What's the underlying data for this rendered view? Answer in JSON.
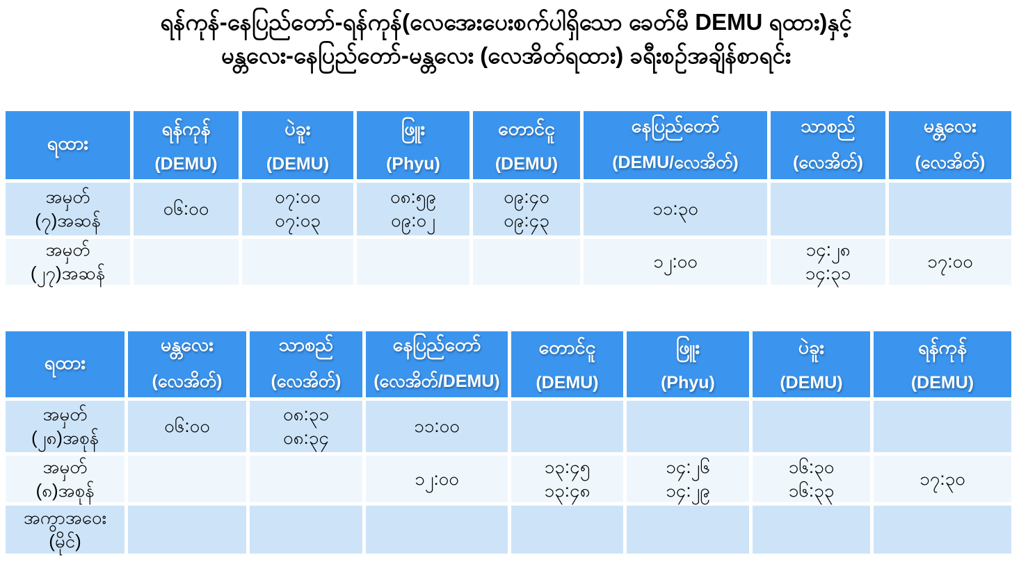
{
  "title": {
    "line1": "ရန်ကုန်-နေပြည်တော်-ရန်ကုန်(လေအေးပေးစက်ပါရှိသော ခေတ်မီ DEMU ရထား)နှင့်",
    "line2": "မန္တလေး-နေပြည်တော်-မန္တလေး (လေအိတ်ရထား) ခရီးစဉ်အချိန်စာရင်း"
  },
  "colors": {
    "header_bg": "#3B95EF",
    "row_light_blue": "#CDE4F8",
    "row_pale_blue": "#EFF7FD",
    "header_text": "#FFFFFF",
    "body_text": "#050505"
  },
  "table1": {
    "columns": [
      {
        "name": "ရထား",
        "sub": ""
      },
      {
        "name": "ရန်ကုန်",
        "sub": "(DEMU)"
      },
      {
        "name": "ပဲခူး",
        "sub": "(DEMU)"
      },
      {
        "name": "ဖြူး",
        "sub": "(Phyu)"
      },
      {
        "name": "တောင်ငူ",
        "sub": "(DEMU)"
      },
      {
        "name": "နေပြည်တော်",
        "sub": "(DEMU/လေအိတ်)"
      },
      {
        "name": "သာစည်",
        "sub": "(လေအိတ်)"
      },
      {
        "name": "မန္တလေး",
        "sub": "(လေအိတ်)"
      }
    ],
    "rows": [
      {
        "label": "အမှတ်\n(၇)အဆန်",
        "cells": [
          "၀၆:၀၀",
          "၀၇:၀၀\n၀၇:၀၃",
          "၀၈:၅၉\n၀၉:၀၂",
          "၀၉:၄၀\n၀၉:၄၃",
          "၁၁:၃၀",
          "",
          ""
        ]
      },
      {
        "label": "အမှတ်\n(၂၇)အဆန်",
        "cells": [
          "",
          "",
          "",
          "",
          "၁၂:၀၀",
          "၁၄:၂၈\n၁၄:၃၁",
          "၁၇:၀၀"
        ]
      }
    ]
  },
  "table2": {
    "columns": [
      {
        "name": "ရထား",
        "sub": ""
      },
      {
        "name": "မန္တလေး",
        "sub": "(လေအိတ်)"
      },
      {
        "name": "သာစည်",
        "sub": "(လေအိတ်)"
      },
      {
        "name": "နေပြည်တော်",
        "sub": "(လေအိတ်/DEMU)"
      },
      {
        "name": "တောင်ငူ",
        "sub": "(DEMU)"
      },
      {
        "name": "ဖြူး",
        "sub": "(Phyu)"
      },
      {
        "name": "ပဲခူး",
        "sub": "(DEMU)"
      },
      {
        "name": "ရန်ကုန်",
        "sub": "(DEMU)"
      }
    ],
    "rows": [
      {
        "label": "အမှတ်\n(၂၈)အစုန်",
        "cells": [
          "၀၆:၀၀",
          "၀၈:၃၁\n၀၈:၃၄",
          "၁၁:၀၀",
          "",
          "",
          "",
          ""
        ]
      },
      {
        "label": "အမှတ်\n(၈)အစုန်",
        "cells": [
          "",
          "",
          "၁၂:၀၀",
          "၁၃:၄၅\n၁၃:၄၈",
          "၁၄:၂၆\n၁၄:၂၉",
          "၁၆:၃၀\n၁၆:၃၃",
          "၁၇:၃၀"
        ]
      },
      {
        "label": "အကွာအဝေး\n(မိုင်)",
        "cells": [
          "",
          "",
          "",
          "",
          "",
          "",
          ""
        ]
      }
    ]
  }
}
